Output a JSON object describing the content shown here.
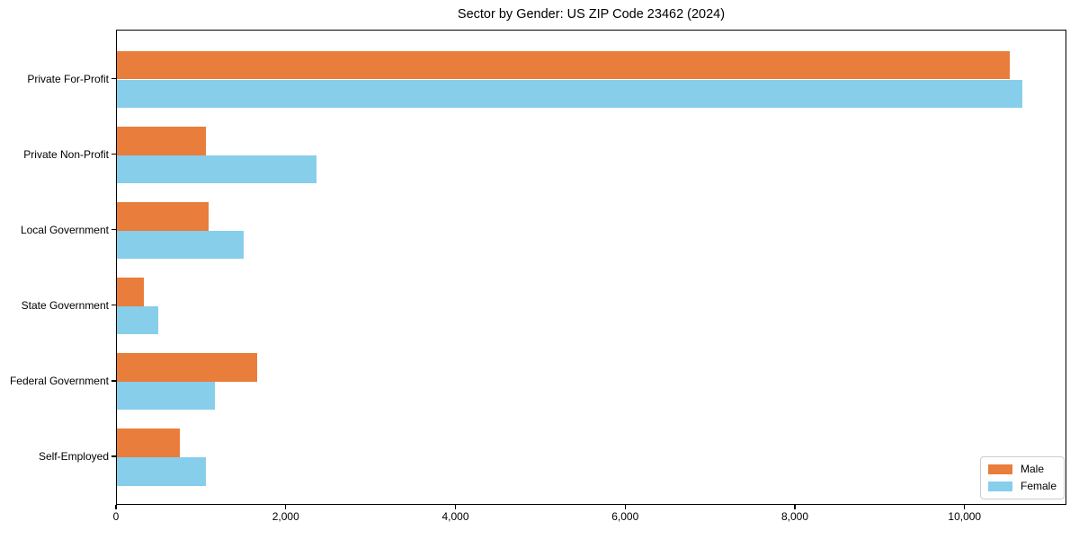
{
  "chart_data": {
    "type": "bar",
    "orientation": "horizontal",
    "title": "Sector by Gender: US ZIP Code 23462 (2024)",
    "categories": [
      "Private For-Profit",
      "Private Non-Profit",
      "Local Government",
      "State Government",
      "Federal Government",
      "Self-Employed"
    ],
    "series": [
      {
        "name": "Male",
        "color": "#e87d3c",
        "values": [
          10520,
          1050,
          1080,
          320,
          1650,
          740
        ]
      },
      {
        "name": "Female",
        "color": "#87ceeb",
        "values": [
          10670,
          2350,
          1490,
          490,
          1150,
          1050
        ]
      }
    ],
    "xlabel": "",
    "ylabel": "",
    "xlim": [
      0,
      11200
    ],
    "xticks": [
      0,
      2000,
      4000,
      6000,
      8000,
      10000
    ],
    "xtick_labels": [
      "0",
      "2,000",
      "4,000",
      "6,000",
      "8,000",
      "10,000"
    ],
    "legend": {
      "position": "lower right",
      "entries": [
        "Male",
        "Female"
      ]
    },
    "grid": false,
    "background": "#ffffff",
    "axis_color": "#000000"
  }
}
